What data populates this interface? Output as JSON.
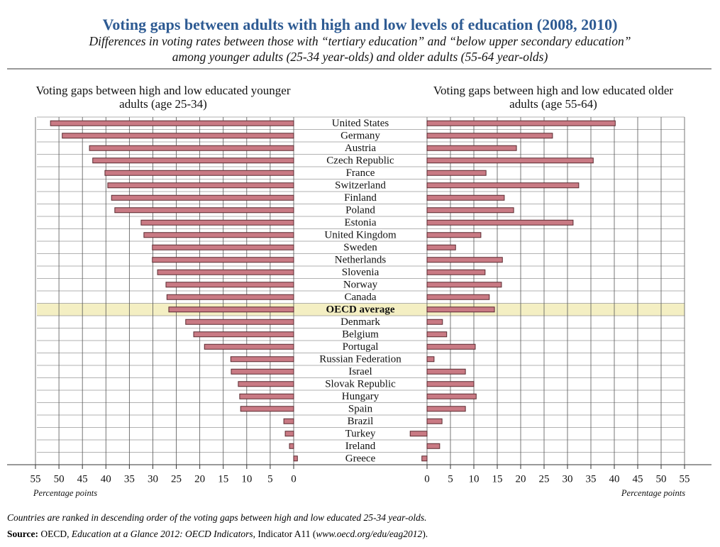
{
  "chart_data": {
    "type": "butterfly",
    "title": "Voting gaps between adults with high and low levels of education (2008, 2010)",
    "subtitle": [
      "Differences in voting rates between those with “tertiary education” and “below upper secondary education”",
      "among younger adults (25-34 year-olds) and older adults (55-64 year-olds)"
    ],
    "categories": [
      "United States",
      "Germany",
      "Austria",
      "Czech Republic",
      "France",
      "Switzerland",
      "Finland",
      "Poland",
      "Estonia",
      "United Kingdom",
      "Sweden",
      "Netherlands",
      "Slovenia",
      "Norway",
      "Canada",
      "OECD average",
      "Denmark",
      "Belgium",
      "Portugal",
      "Russian Federation",
      "Israel",
      "Slovak Republic",
      "Hungary",
      "Spain",
      "Brazil",
      "Turkey",
      "Ireland",
      "Greece"
    ],
    "highlight": 15,
    "series": [
      {
        "name": "Voting gaps between high and low educated younger adults (age 25-34)",
        "color": "#c97a84",
        "reversed": true,
        "values": [
          51.8,
          49.3,
          43.5,
          42.8,
          40.2,
          39.6,
          38.8,
          38.1,
          32.5,
          31.9,
          30.1,
          30.1,
          29.0,
          27.2,
          27.0,
          26.6,
          23.0,
          21.3,
          19.0,
          13.4,
          13.3,
          11.8,
          11.5,
          11.3,
          2.1,
          1.8,
          0.9,
          -0.8
        ]
      },
      {
        "name": "Voting gaps between high and low educated older adults (age 55-64)",
        "color": "#c97a84",
        "reversed": false,
        "values": [
          40.2,
          26.8,
          19.1,
          35.5,
          12.6,
          32.4,
          16.5,
          18.5,
          31.2,
          11.5,
          6.1,
          16.1,
          12.4,
          15.9,
          13.3,
          14.4,
          3.3,
          4.2,
          10.3,
          1.5,
          8.2,
          10.0,
          10.5,
          8.2,
          3.2,
          -3.6,
          2.7,
          -1.1
        ]
      }
    ],
    "xlim": [
      0,
      55
    ],
    "xticks": [
      0,
      5,
      10,
      15,
      20,
      25,
      30,
      35,
      40,
      45,
      50,
      55
    ],
    "xlabel": "Percentage points",
    "grid": true,
    "note": "Countries are ranked in descending order of the voting gaps between high and low educated 25-34 year-olds.",
    "source": {
      "label": "Source:",
      "parts": [
        " OECD, ",
        "Education at a Glance 2012: OECD Indicators",
        ", Indicator A11 (",
        "www.oecd.org/edu/eag2012",
        ")."
      ]
    }
  }
}
